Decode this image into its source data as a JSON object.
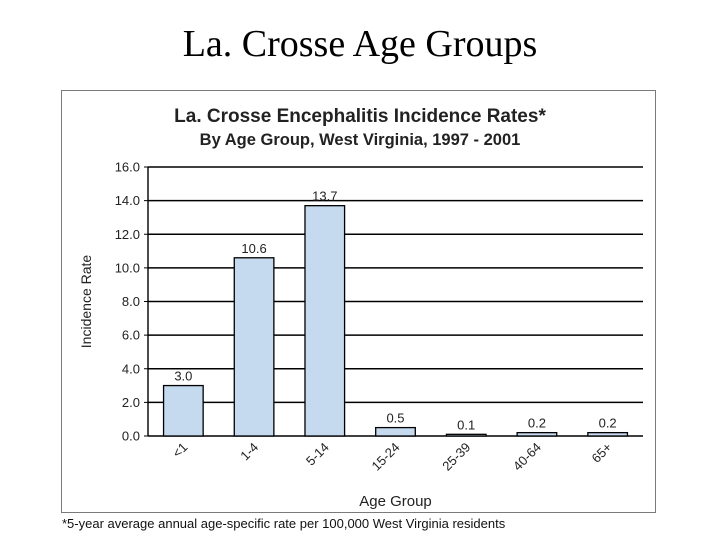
{
  "slide": {
    "title": "La. Crosse Age Groups"
  },
  "footnote": "*5-year average annual age-specific rate per 100,000 West Virginia residents",
  "chart_data": {
    "type": "bar",
    "title": "La. Crosse Encephalitis Incidence Rates*",
    "subtitle": "By Age Group, West Virginia, 1997 - 2001",
    "xlabel": "Age Group",
    "ylabel": "Incidence Rate",
    "categories": [
      "<1",
      "1-4",
      "5-14",
      "15-24",
      "25-39",
      "40-64",
      "65+"
    ],
    "values": [
      3.0,
      10.6,
      13.7,
      0.5,
      0.1,
      0.2,
      0.2
    ],
    "value_labels": [
      "3.0",
      "10.6",
      "13.7",
      "0.5",
      "0.1",
      "0.2",
      "0.2"
    ],
    "ylim": [
      0,
      16
    ],
    "yticks": [
      "0.0",
      "2.0",
      "4.0",
      "6.0",
      "8.0",
      "10.0",
      "12.0",
      "14.0",
      "16.0"
    ],
    "grid": true,
    "legend": "none",
    "colors": {
      "bar_fill": "#c5d9ef",
      "bar_stroke": "#000000",
      "grid": "#000000"
    }
  }
}
